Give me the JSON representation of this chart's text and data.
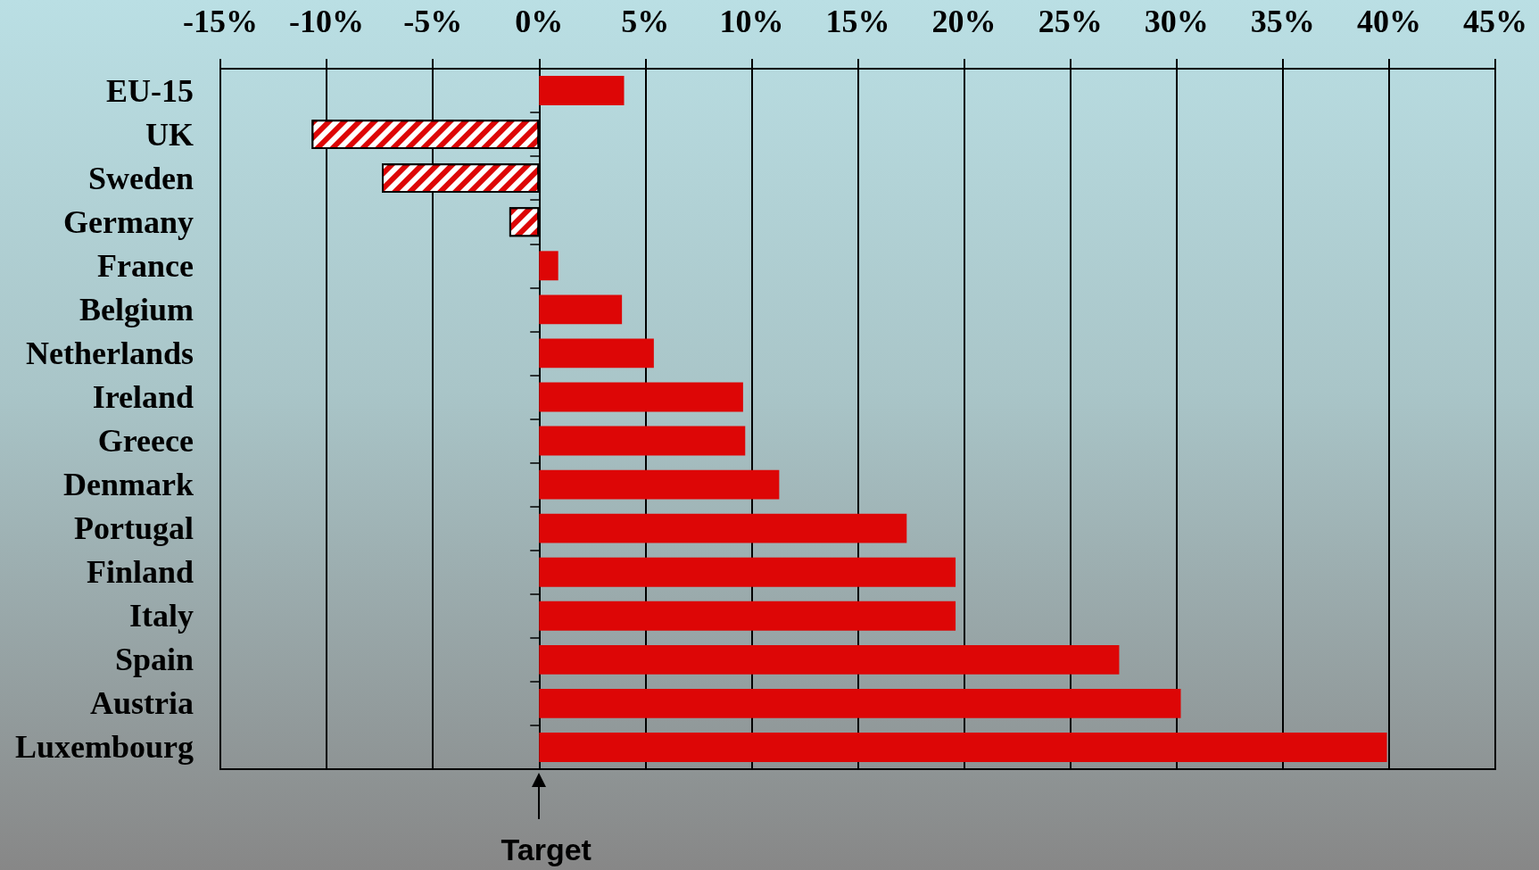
{
  "chart_data": {
    "type": "bar",
    "orientation": "horizontal",
    "categories": [
      "EU-15",
      "UK",
      "Sweden",
      "Germany",
      "France",
      "Belgium",
      "Netherlands",
      "Ireland",
      "Greece",
      "Denmark",
      "Portugal",
      "Finland",
      "Italy",
      "Spain",
      "Austria",
      "Luxembourg"
    ],
    "values": [
      4.0,
      -10.7,
      -7.4,
      -1.4,
      0.9,
      3.9,
      5.4,
      9.6,
      9.7,
      11.3,
      17.3,
      19.6,
      19.6,
      27.3,
      30.2,
      39.9
    ],
    "color": "#dd0606",
    "xlim": [
      -15,
      45
    ],
    "xticks": [
      {
        "value": -15,
        "label": "-15%"
      },
      {
        "value": -10,
        "label": "-10%"
      },
      {
        "value": -5,
        "label": "-5%"
      },
      {
        "value": 0,
        "label": "0%"
      },
      {
        "value": 5,
        "label": "5%"
      },
      {
        "value": 10,
        "label": "10%"
      },
      {
        "value": 15,
        "label": "15%"
      },
      {
        "value": 20,
        "label": "20%"
      },
      {
        "value": 25,
        "label": "25%"
      },
      {
        "value": 30,
        "label": "30%"
      },
      {
        "value": 35,
        "label": "35%"
      },
      {
        "value": 40,
        "label": "40%"
      },
      {
        "value": 45,
        "label": "45%"
      }
    ],
    "grid": "x",
    "annotations": [
      "Target"
    ]
  }
}
